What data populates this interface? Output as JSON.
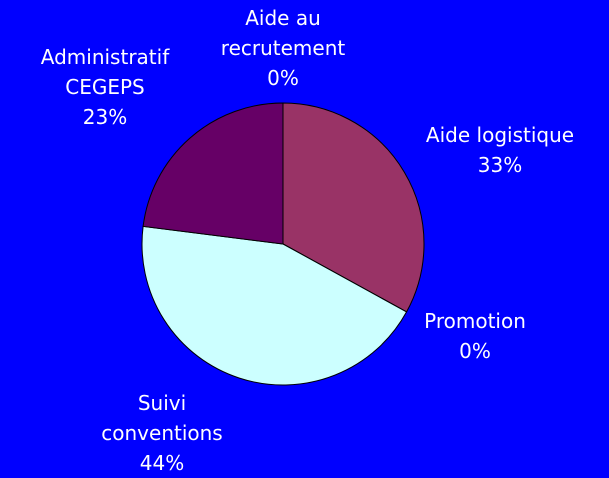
{
  "chart_data": {
    "type": "pie",
    "categories": [
      "Aide logistique",
      "Promotion",
      "Suivi\nconventions",
      "Administratif\nCEGEPS",
      "Aide au\nrecrutement"
    ],
    "values": [
      33,
      0,
      44,
      23,
      0
    ],
    "value_labels": [
      "33%",
      "0%",
      "44%",
      "23%",
      "0%"
    ],
    "colors": [
      "#993366",
      "#ffffcc",
      "#ccffff",
      "#660066",
      "#ccccff"
    ]
  }
}
